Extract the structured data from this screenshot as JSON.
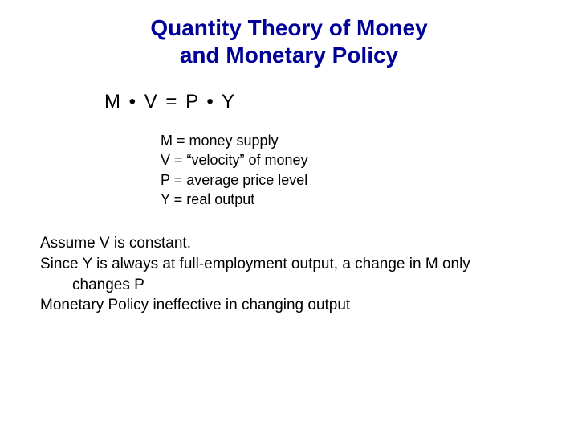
{
  "title": {
    "line1": "Quantity Theory of Money",
    "line2": "and Monetary Policy",
    "color": "#000099",
    "fontsize": 28
  },
  "equation": {
    "text": "M • V = P • Y",
    "fontsize": 24,
    "color": "#000000"
  },
  "definitions": {
    "fontsize": 18,
    "color": "#000000",
    "items": [
      "M = money supply",
      "V = “velocity” of money",
      "P = average price level",
      "Y = real output"
    ]
  },
  "body": {
    "fontsize": 19,
    "color": "#000000",
    "lines": [
      "Assume V is constant.",
      "Since Y is always at full-employment output, a change in M only",
      "changes P",
      "Monetary Policy ineffective in changing output"
    ]
  },
  "background_color": "#ffffff"
}
